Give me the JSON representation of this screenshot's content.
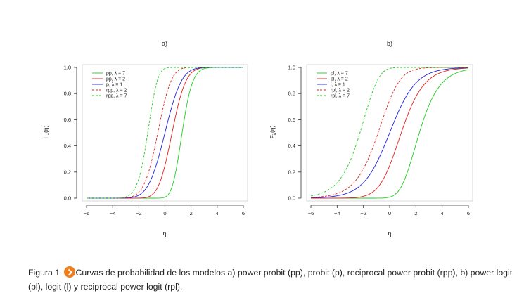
{
  "chart_data": [
    {
      "type": "line",
      "title": "a)",
      "xlabel": "η",
      "ylabel": "F_λ(η)",
      "xlim": [
        -6,
        6
      ],
      "ylim": [
        0,
        1
      ],
      "xticks": [
        "−6",
        "−4",
        "−2",
        "0",
        "2",
        "4",
        "6"
      ],
      "yticks": [
        "0.0",
        "0.2",
        "0.4",
        "0.6",
        "0.8",
        "1.0"
      ],
      "grid": false,
      "legend_position": "top-left",
      "series": [
        {
          "name": "pp, λ = 7",
          "family": "power-probit",
          "lambda": 7,
          "color": "#22cc22",
          "dashed": false
        },
        {
          "name": "pp, λ = 2",
          "family": "power-probit",
          "lambda": 2,
          "color": "#e02020",
          "dashed": false
        },
        {
          "name": "p, λ = 1",
          "family": "probit",
          "lambda": 1,
          "color": "#2020e0",
          "dashed": false
        },
        {
          "name": "rpp, λ = 2",
          "family": "reciprocal-power-probit",
          "lambda": 2,
          "color": "#e02020",
          "dashed": true
        },
        {
          "name": "rpp, λ = 7",
          "family": "reciprocal-power-probit",
          "lambda": 7,
          "color": "#22cc22",
          "dashed": true
        }
      ]
    },
    {
      "type": "line",
      "title": "b)",
      "xlabel": "η",
      "ylabel": "F_λ(η)",
      "xlim": [
        -6,
        6
      ],
      "ylim": [
        0,
        1
      ],
      "xticks": [
        "−6",
        "−4",
        "−2",
        "0",
        "2",
        "4",
        "6"
      ],
      "yticks": [
        "0.0",
        "0.2",
        "0.4",
        "0.6",
        "0.8",
        "1.0"
      ],
      "grid": false,
      "legend_position": "top-left",
      "series": [
        {
          "name": "pl, λ = 7",
          "family": "power-logit",
          "lambda": 7,
          "color": "#22cc22",
          "dashed": false
        },
        {
          "name": "pl, λ = 2",
          "family": "power-logit",
          "lambda": 2,
          "color": "#e02020",
          "dashed": false
        },
        {
          "name": "l, λ = 1",
          "family": "logit",
          "lambda": 1,
          "color": "#2020e0",
          "dashed": false
        },
        {
          "name": "rpl, λ = 2",
          "family": "reciprocal-power-logit",
          "lambda": 2,
          "color": "#e02020",
          "dashed": true
        },
        {
          "name": "rpl, λ = 7",
          "family": "reciprocal-power-logit",
          "lambda": 7,
          "color": "#22cc22",
          "dashed": true
        }
      ]
    }
  ],
  "caption": {
    "label": "Figura 1",
    "text": "Curvas de probabilidad de los modelos a) power probit (pp), probit (p), reciprocal power probit (rpp), b) power logit (pl), logit (l) y reciprocal power logit (rpl)."
  }
}
